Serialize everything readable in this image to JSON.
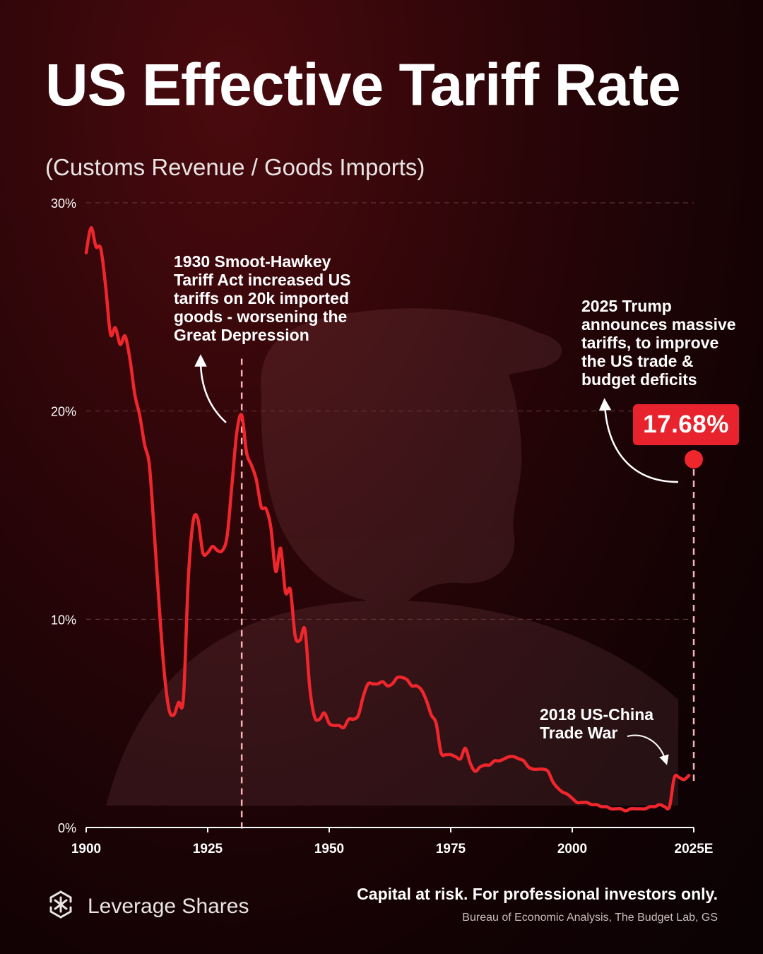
{
  "title": "US Effective Tariff Rate",
  "subtitle": "(Customs Revenue / Goods Imports)",
  "annotations": {
    "smoot_hawley": "1930 Smoot-Hawkey\nTariff Act increased US\ntariffs on 20k imported\ngoods - worsening the\nGreat Depression",
    "trump_2025": "2025 Trump\nannounces massive\ntariffs, to improve\nthe US trade &\nbudget deficits",
    "trade_war_2018": "2018 US-China\nTrade War"
  },
  "highlight_value": "17.68%",
  "brand": {
    "name": "Leverage Shares"
  },
  "footer": {
    "disclaimer": "Capital at risk. For professional investors only.",
    "source": "Bureau of Economic Analysis, The Budget Lab, GS"
  },
  "colors": {
    "line": "#f0262d",
    "marker": "#f0262d",
    "badge": "#e8232d",
    "guide": "#f6b3b5",
    "grid": "#6a3a3c"
  },
  "chart_data": {
    "type": "line",
    "title": "US Effective Tariff Rate",
    "subtitle": "(Customs Revenue / Goods Imports)",
    "xlabel": "",
    "ylabel": "",
    "xlim": [
      1900,
      2025
    ],
    "ylim": [
      0,
      30
    ],
    "x_ticks": [
      1900,
      1925,
      1950,
      1975,
      2000,
      2025
    ],
    "x_tick_labels": [
      "1900",
      "1925",
      "1950",
      "1975",
      "2000",
      "2025E"
    ],
    "y_ticks": [
      0,
      10,
      20,
      30
    ],
    "y_tick_labels": [
      "0%",
      "10%",
      "20%",
      "30%"
    ],
    "series": [
      {
        "name": "Effective tariff rate (%)",
        "x": [
          1900,
          1901,
          1902,
          1903,
          1904,
          1905,
          1906,
          1907,
          1908,
          1909,
          1910,
          1911,
          1912,
          1913,
          1914,
          1915,
          1916,
          1917,
          1918,
          1919,
          1920,
          1921,
          1922,
          1923,
          1924,
          1925,
          1926,
          1927,
          1928,
          1929,
          1930,
          1931,
          1932,
          1933,
          1934,
          1935,
          1936,
          1937,
          1938,
          1939,
          1940,
          1941,
          1942,
          1943,
          1944,
          1945,
          1946,
          1947,
          1948,
          1949,
          1950,
          1951,
          1952,
          1953,
          1954,
          1955,
          1956,
          1957,
          1958,
          1959,
          1960,
          1961,
          1962,
          1963,
          1964,
          1965,
          1966,
          1967,
          1968,
          1969,
          1970,
          1971,
          1972,
          1973,
          1974,
          1975,
          1976,
          1977,
          1978,
          1979,
          1980,
          1981,
          1982,
          1983,
          1984,
          1985,
          1986,
          1987,
          1988,
          1989,
          1990,
          1991,
          1992,
          1993,
          1994,
          1995,
          1996,
          1997,
          1998,
          1999,
          2000,
          2001,
          2002,
          2003,
          2004,
          2005,
          2006,
          2007,
          2008,
          2009,
          2010,
          2011,
          2012,
          2013,
          2014,
          2015,
          2016,
          2017,
          2018,
          2019,
          2020,
          2021,
          2022,
          2023,
          2024
        ],
        "values": [
          27.6,
          28.8,
          27.9,
          27.8,
          26.0,
          23.7,
          24.0,
          23.2,
          23.6,
          22.5,
          20.8,
          19.8,
          18.4,
          17.4,
          14.2,
          10.7,
          7.6,
          5.7,
          5.4,
          6.0,
          6.2,
          11.9,
          14.7,
          14.8,
          13.2,
          13.2,
          13.5,
          13.3,
          13.3,
          14.0,
          16.5,
          19.0,
          19.8,
          18.0,
          17.4,
          16.7,
          15.4,
          15.3,
          14.4,
          12.3,
          13.4,
          11.3,
          11.4,
          9.2,
          9.0,
          9.5,
          6.7,
          5.3,
          5.2,
          5.5,
          5.0,
          4.9,
          4.9,
          4.8,
          5.2,
          5.2,
          5.4,
          6.3,
          6.9,
          6.9,
          6.9,
          7.0,
          6.8,
          6.9,
          7.2,
          7.2,
          7.1,
          6.8,
          6.8,
          6.6,
          6.1,
          5.4,
          5.0,
          3.6,
          3.5,
          3.5,
          3.4,
          3.3,
          3.8,
          3.1,
          2.7,
          2.9,
          3.0,
          3.0,
          3.2,
          3.2,
          3.3,
          3.4,
          3.4,
          3.3,
          3.2,
          2.9,
          2.8,
          2.8,
          2.8,
          2.7,
          2.2,
          1.9,
          1.7,
          1.6,
          1.4,
          1.2,
          1.2,
          1.2,
          1.1,
          1.1,
          1.0,
          1.0,
          0.9,
          0.9,
          0.9,
          0.8,
          0.9,
          0.9,
          0.9,
          0.9,
          1.0,
          1.0,
          1.1,
          1.0,
          1.0,
          2.4,
          2.4,
          2.3,
          2.5
        ]
      }
    ],
    "highlight": {
      "x": 2025,
      "value": 17.68,
      "label": "17.68%"
    },
    "guides": [
      {
        "x": 1932
      },
      {
        "x": 2025
      }
    ],
    "grid": true
  }
}
